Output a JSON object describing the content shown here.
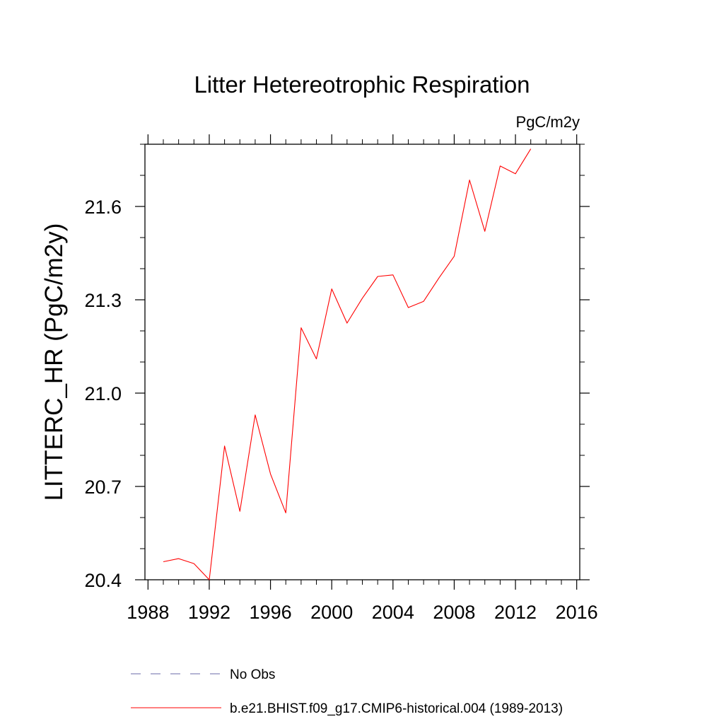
{
  "chart_data": {
    "type": "line",
    "title": "Litter Hetereotrophic Respiration",
    "units": "PgC/m2y",
    "xlabel": "",
    "ylabel": "LITTERC_HR  (PgC/m2y)",
    "xlim": [
      1987.8,
      2016.2
    ],
    "ylim": [
      20.4,
      21.8
    ],
    "x_ticks": [
      "1988",
      "1992",
      "1996",
      "2000",
      "2004",
      "2008",
      "2012",
      "2016"
    ],
    "y_ticks": [
      "20.4",
      "20.7",
      "21.0",
      "21.3",
      "21.6"
    ],
    "x_minor_step": 1,
    "y_minor_step": 0.1,
    "series": [
      {
        "name": "b.e21.BHIST.f09_g17.CMIP6-historical.004 (1989-2013)",
        "color": "#ff0000",
        "style": "solid",
        "x": [
          1989,
          1990,
          1991,
          1992,
          1993,
          1994,
          1995,
          1996,
          1997,
          1998,
          1999,
          2000,
          2001,
          2002,
          2003,
          2004,
          2005,
          2006,
          2007,
          2008,
          2009,
          2010,
          2011,
          2012,
          2013
        ],
        "values": [
          20.458,
          20.468,
          20.452,
          20.4,
          20.83,
          20.62,
          20.93,
          20.74,
          20.615,
          21.21,
          21.11,
          21.335,
          21.225,
          21.305,
          21.375,
          21.38,
          21.275,
          21.295,
          21.37,
          21.44,
          21.685,
          21.52,
          21.73,
          21.705,
          21.785
        ]
      }
    ],
    "legend": {
      "placement": "bottom",
      "entries": [
        {
          "label": "No Obs",
          "color": "#6a6aaa",
          "style": "dashed"
        },
        {
          "label": "b.e21.BHIST.f09_g17.CMIP6-historical.004 (1989-2013)",
          "color": "#ff0000",
          "style": "solid"
        }
      ]
    }
  }
}
